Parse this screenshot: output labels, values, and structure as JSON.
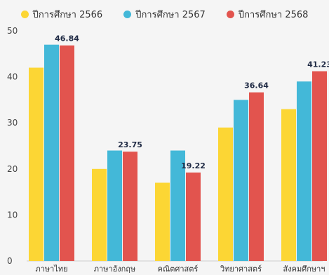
{
  "chart_data": {
    "type": "bar",
    "title": "",
    "xlabel": "",
    "ylabel": "",
    "ylim": [
      0,
      50
    ],
    "yticks": [
      0,
      10,
      20,
      30,
      40,
      50
    ],
    "grid": false,
    "legend_position": "top",
    "categories": [
      "ภาษาไทย",
      "ภาษาอังกฤษ",
      "คณิตศาสตร์",
      "วิทยาศาสตร์",
      "สังคมศึกษาฯ"
    ],
    "series": [
      {
        "name": "ปีการศึกษา 2566",
        "color": "#fcd634",
        "values": [
          42,
          20,
          17,
          29,
          33
        ]
      },
      {
        "name": "ปีการศึกษา 2567",
        "color": "#43b8d8",
        "values": [
          47,
          24,
          24,
          35,
          39
        ]
      },
      {
        "name": "ปีการศึกษา 2568",
        "color": "#e2544e",
        "values": [
          46.84,
          23.75,
          19.22,
          36.64,
          41.23
        ]
      }
    ],
    "value_labels": {
      "series_index": 2,
      "labels": [
        "46.84",
        "23.75",
        "19.22",
        "36.64",
        "41.23"
      ]
    }
  }
}
